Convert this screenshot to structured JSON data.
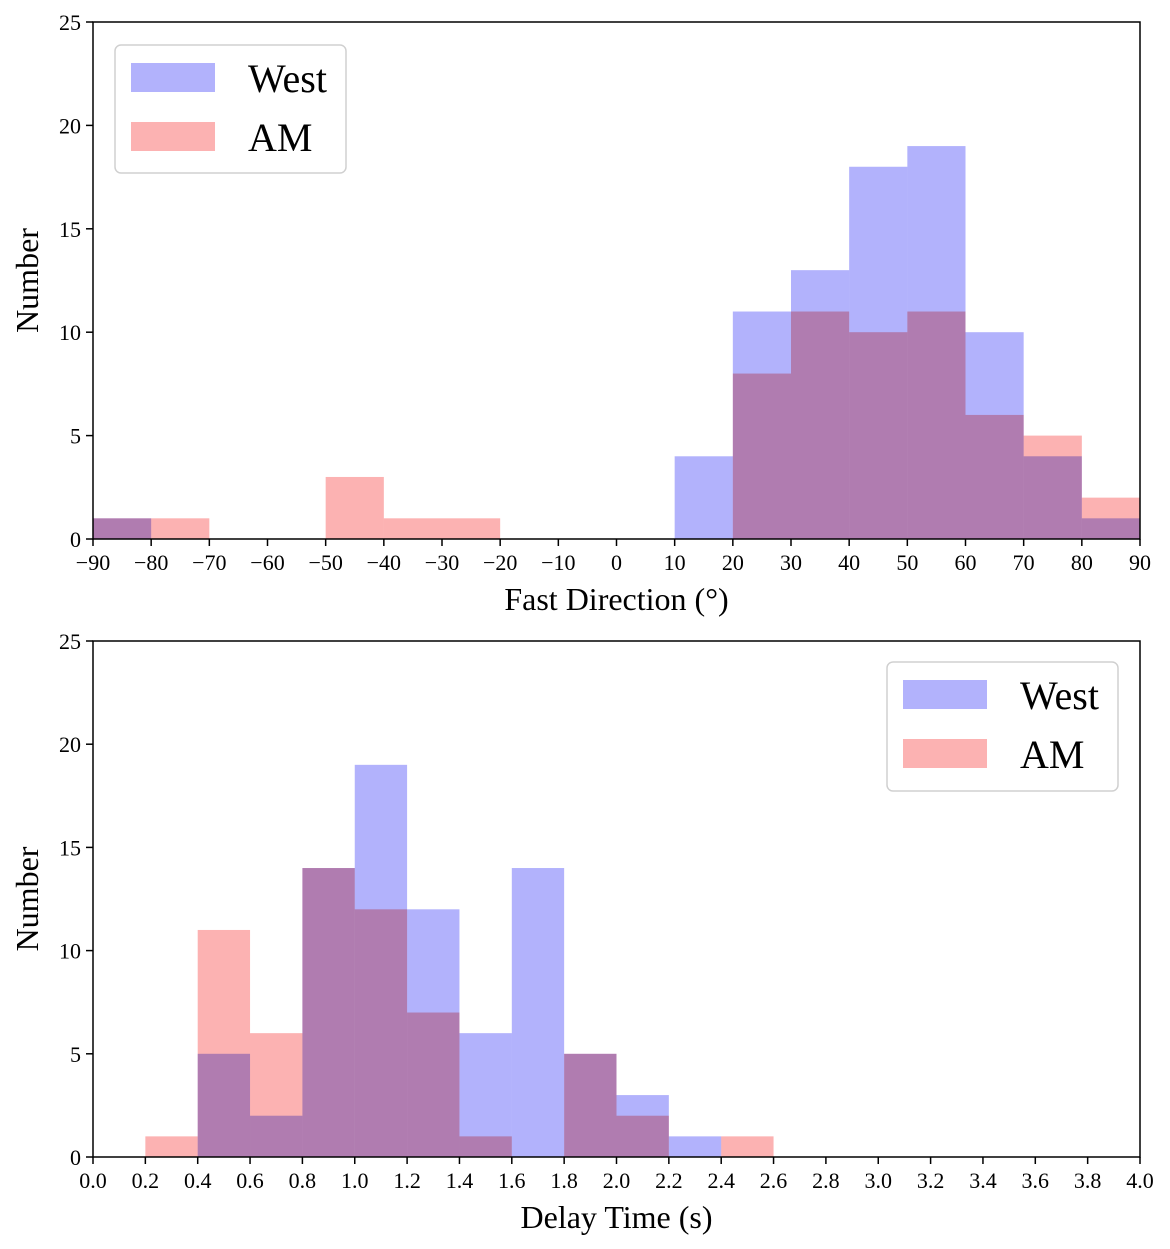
{
  "chart_data": [
    {
      "type": "bar",
      "subtype": "overlapping-histogram",
      "xlabel": "Fast Direction (°)",
      "ylabel": "Number",
      "xlim": [
        -90,
        90
      ],
      "ylim": [
        0,
        25
      ],
      "xticks": [
        -90,
        -80,
        -70,
        -60,
        -50,
        -40,
        -30,
        -20,
        -10,
        0,
        10,
        20,
        30,
        40,
        50,
        60,
        70,
        80,
        90
      ],
      "xtick_labels": [
        "−90",
        "−80",
        "−70",
        "−60",
        "−50",
        "−40",
        "−30",
        "−20",
        "−10",
        "0",
        "10",
        "20",
        "30",
        "40",
        "50",
        "60",
        "70",
        "80",
        "90"
      ],
      "yticks": [
        0,
        5,
        10,
        15,
        20,
        25
      ],
      "bin_edges": [
        -90,
        -80,
        -70,
        -60,
        -50,
        -40,
        -30,
        -20,
        -10,
        0,
        10,
        20,
        30,
        40,
        50,
        60,
        70,
        80,
        90
      ],
      "legend_position": "upper-left",
      "series": [
        {
          "name": "West",
          "color": "#b2b2fc",
          "values": [
            1,
            0,
            0,
            0,
            0,
            0,
            0,
            0,
            0,
            0,
            4,
            11,
            13,
            18,
            19,
            10,
            4,
            1
          ]
        },
        {
          "name": "AM",
          "color": "#fcb2b2",
          "values": [
            1,
            1,
            0,
            0,
            3,
            1,
            1,
            0,
            0,
            0,
            0,
            8,
            11,
            10,
            11,
            6,
            5,
            2
          ]
        }
      ],
      "overlap_color": "#c77eb2"
    },
    {
      "type": "bar",
      "subtype": "overlapping-histogram",
      "xlabel": "Delay Time (s)",
      "ylabel": "Number",
      "xlim": [
        0,
        4
      ],
      "ylim": [
        0,
        25
      ],
      "xticks": [
        0.0,
        0.2,
        0.4,
        0.6,
        0.8,
        1.0,
        1.2,
        1.4,
        1.6,
        1.8,
        2.0,
        2.2,
        2.4,
        2.6,
        2.8,
        3.0,
        3.2,
        3.4,
        3.6,
        3.8,
        4.0
      ],
      "xtick_labels": [
        "0.0",
        "0.2",
        "0.4",
        "0.6",
        "0.8",
        "1.0",
        "1.2",
        "1.4",
        "1.6",
        "1.8",
        "2.0",
        "2.2",
        "2.4",
        "2.6",
        "2.8",
        "3.0",
        "3.2",
        "3.4",
        "3.6",
        "3.8",
        "4.0"
      ],
      "yticks": [
        0,
        5,
        10,
        15,
        20,
        25
      ],
      "bin_edges": [
        0.2,
        0.4,
        0.6,
        0.8,
        1.0,
        1.2,
        1.4,
        1.6,
        1.8,
        2.0,
        2.2,
        2.4,
        2.6
      ],
      "legend_position": "upper-right",
      "series": [
        {
          "name": "West",
          "color": "#b2b2fc",
          "values": [
            0,
            5,
            2,
            14,
            19,
            12,
            6,
            14,
            5,
            3,
            1,
            0
          ]
        },
        {
          "name": "AM",
          "color": "#fcb2b2",
          "values": [
            1,
            11,
            6,
            14,
            12,
            7,
            1,
            0,
            5,
            2,
            0,
            1
          ]
        }
      ],
      "overlap_color": "#c77eb2"
    }
  ]
}
